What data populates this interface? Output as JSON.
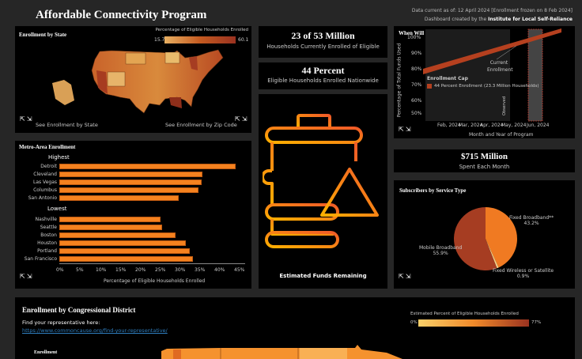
{
  "header": {
    "title": "Affordable Connectivity Program",
    "data_current": "Data current as of: 12 April 2024 [Enrollment frozen on  8 Feb 2024]",
    "credit_prefix": "Dashboard created by the ",
    "credit_org": "Institute for Local Self-Reliance"
  },
  "state_map": {
    "title": "Enrollment by State",
    "legend_title": "Percentage of Eligible Households Enrolled",
    "legend_min": "15.7",
    "legend_max": "60.1",
    "link_state": "See Enrollment by State",
    "link_zip": "See Enrollment by Zip Code",
    "colors": {
      "low": "#e8b062",
      "high": "#9a3220"
    }
  },
  "stat1": {
    "value": "23 of 53 Million",
    "label": "Households Currently Enrolled of Eligible"
  },
  "stat2": {
    "value": "44 Percent",
    "label": "Eligible Households Enrolled Nationwide"
  },
  "funds": {
    "label": "Estimated Funds Remaining",
    "icon": "fuel-barrel-warning-icon"
  },
  "funding_chart": {
    "title": "When Will Funding Run Out?",
    "ylabel": "Percentage of Total Funds Used",
    "xlabel": "Month and Year of Program",
    "yticks": [
      "100%",
      "90%",
      "80%",
      "70%",
      "60%",
      "50%"
    ],
    "xticks": [
      "Feb, 2024",
      "Mar, 2024",
      "Apr, 2024",
      "May, 2024",
      "Jun, 2024"
    ],
    "annotation": "Current Enrollment",
    "observed": "Observed",
    "legend_title": "Enrollment Cap",
    "legend_item": "44 Percent Enrollment (23.3 Million Households)",
    "series_color": "#b5401f"
  },
  "spend": {
    "value": "$715 Million",
    "label": "Spent Each Month"
  },
  "pie": {
    "title": "Subscribers by Service Type",
    "slices": [
      {
        "name": "Fixed Broadband**",
        "pct": "43.2%",
        "value": 43.2,
        "color": "#f07a22"
      },
      {
        "name": "Fixed Wireless or Satellite",
        "pct": "0.9%",
        "value": 0.9,
        "color": "#f5d08a"
      },
      {
        "name": "Mobile Broadband",
        "pct": "55.9%",
        "value": 55.9,
        "color": "#a63d22"
      }
    ]
  },
  "metro": {
    "title": "Metro-Area Enrollment",
    "highest_label": "Highest",
    "lowest_label": "Lowest",
    "xlabel": "Percentage of Eligible Households Enrolled",
    "xticks": [
      "0%",
      "5%",
      "10%",
      "15%",
      "20%",
      "25%",
      "30%",
      "35%",
      "40%",
      "45%"
    ],
    "bar_color": "#f5821f",
    "highest": [
      {
        "city": "Detroit",
        "value": 44.6
      },
      {
        "city": "Cleveland",
        "value": 36.2
      },
      {
        "city": "Las Vegas",
        "value": 36.0
      },
      {
        "city": "Columbus",
        "value": 35.1
      },
      {
        "city": "San Antonio",
        "value": 30.2
      }
    ],
    "lowest": [
      {
        "city": "Nashville",
        "value": 25.6
      },
      {
        "city": "Seattle",
        "value": 25.9
      },
      {
        "city": "Boston",
        "value": 29.4
      },
      {
        "city": "Houston",
        "value": 32.0
      },
      {
        "city": "Portland",
        "value": 32.9
      },
      {
        "city": "San Francisco",
        "value": 33.7
      }
    ]
  },
  "district": {
    "title": "Enrollment by Congressional District",
    "find_text": "Find your representative here:",
    "link": "https://www.commoncause.org/find-your-representative/",
    "legend_title": "Estimated Percent of Eligible Households Enrolled",
    "legend_min": "0%",
    "legend_max": "77%",
    "sub_title": "Enrollment"
  }
}
